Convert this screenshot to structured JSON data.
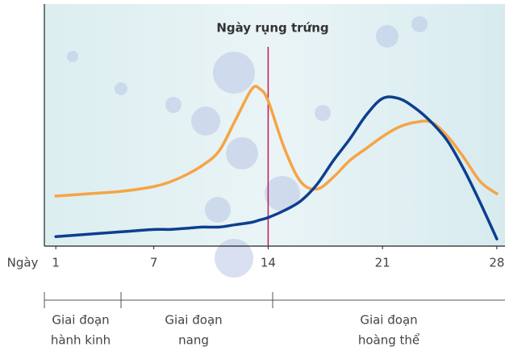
{
  "chart_data": {
    "type": "line",
    "title": "Ngày rụng trứng",
    "xlabel": "Ngày",
    "x": [
      1,
      3,
      5,
      7,
      8,
      9,
      10,
      11,
      12,
      13,
      13.5,
      14,
      15,
      16,
      17,
      18,
      19,
      20,
      21,
      22,
      23,
      24,
      25,
      26,
      27,
      28
    ],
    "series": [
      {
        "color": "#f6a445",
        "values": [
          21,
          22,
          23,
          25,
          27,
          30,
          34,
          40,
          53,
          66,
          66,
          61,
          41,
          27,
          24,
          29,
          36,
          41,
          46,
          50,
          52,
          52,
          46,
          37,
          27,
          22
        ]
      },
      {
        "color": "#0d3f8f",
        "values": [
          4,
          5,
          6,
          7,
          7,
          7.5,
          8,
          8,
          9,
          10,
          11,
          12,
          15,
          19,
          26,
          36,
          45,
          55,
          62,
          62,
          58,
          52,
          44,
          32,
          18,
          3
        ]
      }
    ],
    "xlim": [
      0.3,
      28.5
    ],
    "xticks": [
      1,
      7,
      14,
      21,
      28
    ],
    "ylim": [
      0,
      100
    ],
    "ovulation_day": 14,
    "ovulation_color": "#c2185b",
    "phases": [
      {
        "lines": [
          "Giai đoạn",
          "hành kinh"
        ]
      },
      {
        "lines": [
          "Giai đoạn",
          "nang"
        ]
      },
      {
        "lines": [
          "Giai đoạn",
          "hoàng thể"
        ]
      }
    ]
  }
}
